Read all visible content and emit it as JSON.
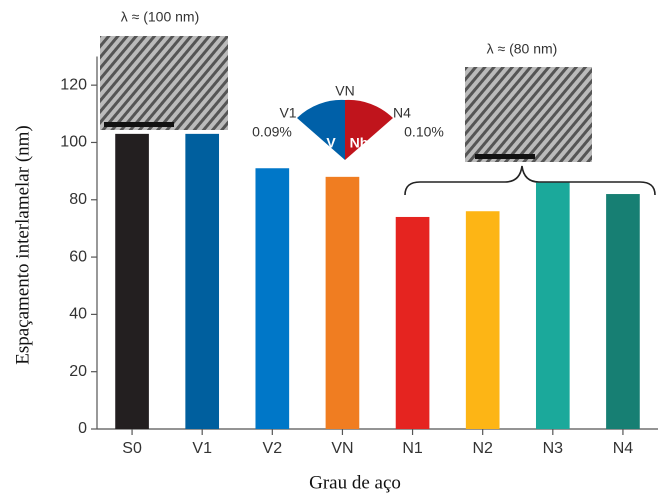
{
  "chart_data": {
    "type": "bar",
    "x_label": "Grau de aço",
    "y_label": "Espaçamento interlamelar (nm)",
    "categories": [
      "S0",
      "V1",
      "V2",
      "VN",
      "N1",
      "N2",
      "N3",
      "N4"
    ],
    "values": [
      103,
      103,
      91,
      88,
      74,
      76,
      86,
      82
    ],
    "colors": [
      "#231f20",
      "#005f9e",
      "#0077c8",
      "#f07d21",
      "#e52420",
      "#fdb515",
      "#1ba99b",
      "#177f73"
    ],
    "ylim": [
      0,
      130
    ],
    "yticks": [
      0,
      20,
      40,
      60,
      80,
      100,
      120
    ],
    "annotations": [
      "λ ≈ (100 nm)",
      "λ ≈ (80 nm)",
      "VN",
      "V1",
      "N4",
      "0.09%",
      "0.10%",
      "V",
      "Nb"
    ]
  }
}
